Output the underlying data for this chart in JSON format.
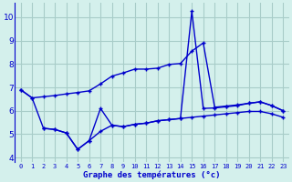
{
  "title": "Graphe des températures (°c)",
  "bg_color": "#d4f0ec",
  "grid_color": "#a8ccc8",
  "line_color": "#0000cc",
  "xlim": [
    -0.5,
    23.5
  ],
  "ylim": [
    3.8,
    10.6
  ],
  "xticks": [
    0,
    1,
    2,
    3,
    4,
    5,
    6,
    7,
    8,
    9,
    10,
    11,
    12,
    13,
    14,
    15,
    16,
    17,
    18,
    19,
    20,
    21,
    22,
    23
  ],
  "yticks": [
    4,
    5,
    6,
    7,
    8,
    9,
    10
  ],
  "line1_x": [
    0,
    1,
    2,
    3,
    4,
    5,
    6,
    7,
    8,
    9,
    10,
    11,
    12,
    13,
    14,
    15,
    16,
    17,
    18,
    19,
    20,
    21,
    22,
    23
  ],
  "line1_y": [
    6.9,
    6.55,
    6.6,
    6.65,
    6.72,
    6.78,
    6.85,
    7.15,
    7.48,
    7.62,
    7.78,
    7.78,
    7.82,
    7.98,
    8.02,
    8.55,
    8.9,
    6.15,
    6.2,
    6.25,
    6.32,
    6.38,
    6.22,
    6.0
  ],
  "line2_x": [
    0,
    1,
    2,
    3,
    4,
    5,
    6,
    7,
    8,
    9,
    10,
    11,
    12,
    13,
    14,
    15,
    16,
    17,
    18,
    19,
    20,
    21,
    22,
    23
  ],
  "line2_y": [
    6.9,
    6.55,
    5.25,
    5.2,
    5.05,
    4.35,
    4.72,
    6.1,
    5.38,
    5.32,
    5.42,
    5.47,
    5.57,
    5.62,
    5.67,
    10.25,
    6.1,
    6.12,
    6.17,
    6.22,
    6.32,
    6.38,
    6.22,
    6.0
  ],
  "line3_x": [
    2,
    3,
    4,
    5,
    6,
    7,
    8,
    9,
    10,
    11,
    12,
    13,
    14,
    15,
    16,
    17,
    18,
    19,
    20,
    21,
    22,
    23
  ],
  "line3_y": [
    5.25,
    5.2,
    5.05,
    4.35,
    4.72,
    5.12,
    5.38,
    5.32,
    5.42,
    5.47,
    5.57,
    5.62,
    5.67,
    5.72,
    5.77,
    5.82,
    5.87,
    5.92,
    5.97,
    5.97,
    5.87,
    5.72
  ],
  "xlabel_fontsize": 6.5,
  "xtick_fontsize": 5,
  "ytick_fontsize": 6.5
}
